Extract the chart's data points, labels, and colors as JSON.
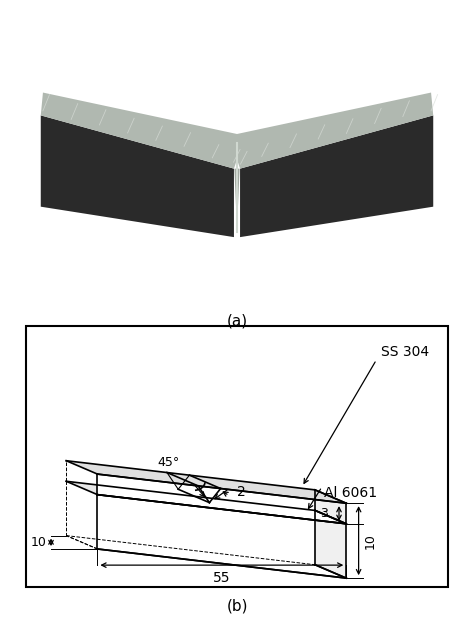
{
  "title_a": "(a)",
  "title_b": "(b)",
  "label_ss304": "SS 304",
  "label_al6061": "Al 6061",
  "label_45deg": "45°",
  "label_2": "2",
  "label_3": "3",
  "label_10_side": "10",
  "label_55": "55",
  "label_10_bottom": "10",
  "bg_color": "#ffffff",
  "line_color": "#000000",
  "photo_bg": "#8B1010",
  "metal_top": "#b0b8b0",
  "metal_dark": "#2a2a2a",
  "metal_side": "#707870",
  "metal_notch_light": "#c8cec8"
}
